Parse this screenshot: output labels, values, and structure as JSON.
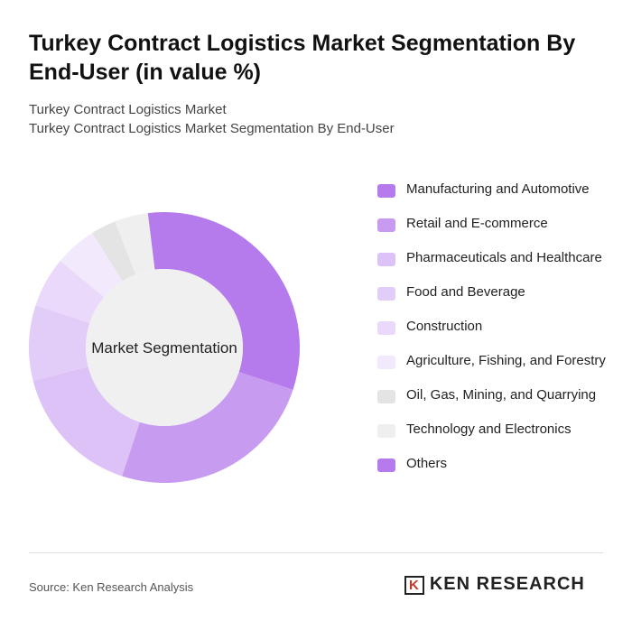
{
  "chart_data": {
    "type": "donut",
    "title": "Turkey Contract Logistics Market Segmentation By End-User (in value %)",
    "subtitle": [
      "Turkey Contract Logistics Market",
      "Turkey Contract Logistics Market Segmentation By End-User"
    ],
    "center_label": "Market Segmentation",
    "categories": [
      "Manufacturing and Automotive",
      "Retail and E-commerce",
      "Pharmaceuticals and Healthcare",
      "Food and Beverage",
      "Construction",
      "Agriculture, Fishing, and Forestry",
      "Oil, Gas, Mining, and Quarrying",
      "Technology and Electronics",
      "Others"
    ],
    "values": [
      32,
      25,
      16,
      9,
      6,
      5,
      3,
      4,
      0
    ],
    "colors": [
      "#b57bec",
      "#c79bf0",
      "#dcc2f6",
      "#e2cdf8",
      "#ead9fa",
      "#f2e9fc",
      "#e4e4e4",
      "#efefef",
      "#b57bec"
    ],
    "source": "Source: Ken Research Analysis",
    "logo": "KEN RESEARCH"
  }
}
